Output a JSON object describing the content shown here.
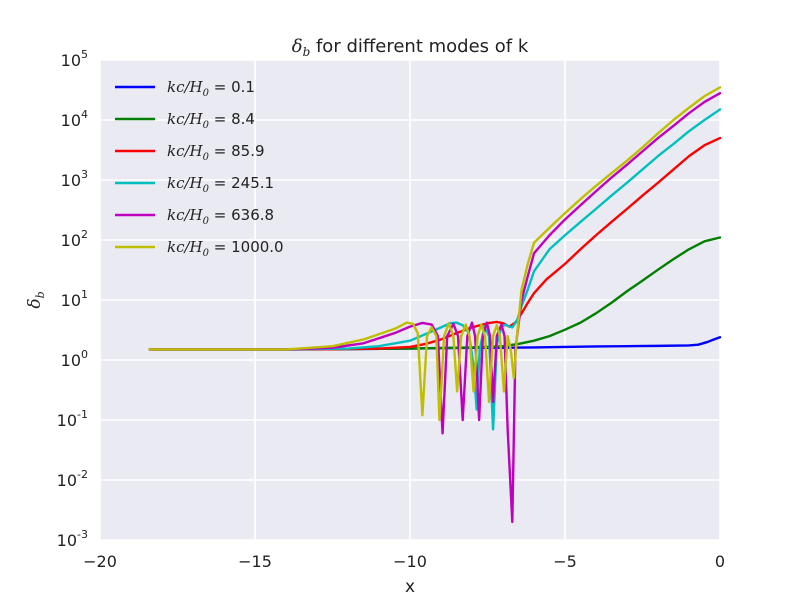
{
  "chart_data": {
    "type": "line",
    "title": "δ_b for different modes of k",
    "title_parts": {
      "symbol": "δ",
      "subscript": "b",
      "rest": " for different modes of k"
    },
    "xlabel": "x",
    "ylabel": "δ_b",
    "ylabel_parts": {
      "symbol": "δ",
      "subscript": "b"
    },
    "xlim": [
      -20,
      0
    ],
    "ylim": [
      0.001,
      100000
    ],
    "y_scale": "log",
    "grid": true,
    "legend_position": "top-left",
    "x_ticks": [
      "−20",
      "−15",
      "−10",
      "−5",
      "0"
    ],
    "y_ticks": [
      {
        "base": "10",
        "exp": "-3"
      },
      {
        "base": "10",
        "exp": "-2"
      },
      {
        "base": "10",
        "exp": "-1"
      },
      {
        "base": "10",
        "exp": "0"
      },
      {
        "base": "10",
        "exp": "1"
      },
      {
        "base": "10",
        "exp": "2"
      },
      {
        "base": "10",
        "exp": "3"
      },
      {
        "base": "10",
        "exp": "4"
      },
      {
        "base": "10",
        "exp": "5"
      }
    ],
    "legend_prefix": "kc/H",
    "legend_prefix_sub": "0",
    "series": [
      {
        "name": "0.1",
        "color": "#0000ff",
        "points": [
          [
            -18.4,
            1.5
          ],
          [
            -16,
            1.5
          ],
          [
            -14,
            1.5
          ],
          [
            -12,
            1.52
          ],
          [
            -10,
            1.55
          ],
          [
            -8,
            1.6
          ],
          [
            -7,
            1.6
          ],
          [
            -6,
            1.62
          ],
          [
            -5,
            1.65
          ],
          [
            -4,
            1.68
          ],
          [
            -3,
            1.7
          ],
          [
            -2,
            1.72
          ],
          [
            -1,
            1.75
          ],
          [
            -0.7,
            1.8
          ],
          [
            -0.4,
            2
          ],
          [
            -0.2,
            2.2
          ],
          [
            0,
            2.4
          ]
        ]
      },
      {
        "name": "8.4",
        "color": "#008000",
        "points": [
          [
            -18.4,
            1.5
          ],
          [
            -16,
            1.5
          ],
          [
            -14,
            1.5
          ],
          [
            -12,
            1.52
          ],
          [
            -10,
            1.55
          ],
          [
            -8,
            1.62
          ],
          [
            -7,
            1.7
          ],
          [
            -6.5,
            1.85
          ],
          [
            -6,
            2.1
          ],
          [
            -5.5,
            2.5
          ],
          [
            -5,
            3.2
          ],
          [
            -4.5,
            4.2
          ],
          [
            -4,
            6
          ],
          [
            -3.5,
            9
          ],
          [
            -3,
            14
          ],
          [
            -2.5,
            21
          ],
          [
            -2,
            32
          ],
          [
            -1.5,
            48
          ],
          [
            -1,
            70
          ],
          [
            -0.5,
            95
          ],
          [
            0,
            110
          ]
        ]
      },
      {
        "name": "85.9",
        "color": "#ff0000",
        "points": [
          [
            -18.4,
            1.5
          ],
          [
            -15,
            1.5
          ],
          [
            -13,
            1.5
          ],
          [
            -11,
            1.55
          ],
          [
            -10,
            1.65
          ],
          [
            -9.5,
            1.85
          ],
          [
            -9,
            2.2
          ],
          [
            -8.5,
            2.8
          ],
          [
            -8,
            3.5
          ],
          [
            -7.5,
            4.1
          ],
          [
            -7.2,
            4.3
          ],
          [
            -7,
            4.1
          ],
          [
            -6.8,
            3.6
          ],
          [
            -6.6,
            4.2
          ],
          [
            -6.4,
            6
          ],
          [
            -6.2,
            9
          ],
          [
            -6,
            13
          ],
          [
            -5.6,
            22
          ],
          [
            -5,
            40
          ],
          [
            -4.5,
            70
          ],
          [
            -4,
            120
          ],
          [
            -3.5,
            200
          ],
          [
            -3,
            330
          ],
          [
            -2.5,
            550
          ],
          [
            -2,
            900
          ],
          [
            -1.5,
            1500
          ],
          [
            -1,
            2500
          ],
          [
            -0.5,
            3800
          ],
          [
            0,
            5000
          ]
        ]
      },
      {
        "name": "245.1",
        "color": "#00bfbf",
        "points": [
          [
            -18.4,
            1.5
          ],
          [
            -14,
            1.5
          ],
          [
            -12,
            1.55
          ],
          [
            -11,
            1.7
          ],
          [
            -10,
            2.1
          ],
          [
            -9.5,
            2.7
          ],
          [
            -9,
            3.5
          ],
          [
            -8.7,
            4.1
          ],
          [
            -8.5,
            4.2
          ],
          [
            -8.3,
            3.8
          ],
          [
            -8.1,
            2.8
          ],
          [
            -7.95,
            0.8
          ],
          [
            -7.85,
            0.15
          ],
          [
            -7.75,
            1.5
          ],
          [
            -7.6,
            3.6
          ],
          [
            -7.45,
            2.5
          ],
          [
            -7.32,
            0.07
          ],
          [
            -7.2,
            1.8
          ],
          [
            -7.05,
            3.6
          ],
          [
            -6.9,
            3.9
          ],
          [
            -6.8,
            3.6
          ],
          [
            -6.7,
            3.5
          ],
          [
            -6.55,
            4.5
          ],
          [
            -6.4,
            8
          ],
          [
            -6.2,
            15
          ],
          [
            -6,
            30
          ],
          [
            -5.5,
            70
          ],
          [
            -5,
            120
          ],
          [
            -4.5,
            200
          ],
          [
            -4,
            330
          ],
          [
            -3.5,
            550
          ],
          [
            -3,
            900
          ],
          [
            -2.5,
            1500
          ],
          [
            -2,
            2500
          ],
          [
            -1.5,
            4000
          ],
          [
            -1,
            6500
          ],
          [
            -0.5,
            10000
          ],
          [
            0,
            15000
          ]
        ]
      },
      {
        "name": "636.8",
        "color": "#bf00bf",
        "points": [
          [
            -18.4,
            1.5
          ],
          [
            -14,
            1.5
          ],
          [
            -12.5,
            1.6
          ],
          [
            -11.5,
            1.9
          ],
          [
            -10.5,
            2.8
          ],
          [
            -10,
            3.6
          ],
          [
            -9.6,
            4.15
          ],
          [
            -9.3,
            3.9
          ],
          [
            -9.1,
            2.5
          ],
          [
            -8.95,
            0.06
          ],
          [
            -8.8,
            2.5
          ],
          [
            -8.6,
            4
          ],
          [
            -8.45,
            2.5
          ],
          [
            -8.3,
            0.1
          ],
          [
            -8.15,
            2.5
          ],
          [
            -8,
            4.2
          ],
          [
            -7.9,
            2.5
          ],
          [
            -7.77,
            0.1
          ],
          [
            -7.65,
            2.5
          ],
          [
            -7.52,
            4.2
          ],
          [
            -7.42,
            2.5
          ],
          [
            -7.32,
            0.2
          ],
          [
            -7.2,
            2.5
          ],
          [
            -7.05,
            3.9
          ],
          [
            -6.95,
            2.5
          ],
          [
            -6.85,
            0.07
          ],
          [
            -6.7,
            0.002
          ],
          [
            -6.6,
            1.5
          ],
          [
            -6.4,
            10
          ],
          [
            -6.2,
            25
          ],
          [
            -6,
            60
          ],
          [
            -5.5,
            120
          ],
          [
            -5,
            220
          ],
          [
            -4.5,
            380
          ],
          [
            -4,
            650
          ],
          [
            -3.5,
            1100
          ],
          [
            -3,
            1800
          ],
          [
            -2.5,
            3000
          ],
          [
            -2,
            5000
          ],
          [
            -1.5,
            8000
          ],
          [
            -1,
            13000
          ],
          [
            -0.5,
            20000
          ],
          [
            0,
            28000
          ]
        ]
      },
      {
        "name": "1000.0",
        "color": "#bfbf00",
        "points": [
          [
            -18.4,
            1.5
          ],
          [
            -14,
            1.5
          ],
          [
            -12.5,
            1.7
          ],
          [
            -11.5,
            2.2
          ],
          [
            -10.5,
            3.3
          ],
          [
            -10.1,
            4.2
          ],
          [
            -9.9,
            4
          ],
          [
            -9.75,
            2.8
          ],
          [
            -9.6,
            0.12
          ],
          [
            -9.45,
            2.5
          ],
          [
            -9.3,
            3.5
          ],
          [
            -9.15,
            2.5
          ],
          [
            -9.05,
            0.1
          ],
          [
            -8.9,
            2.5
          ],
          [
            -8.75,
            4.1
          ],
          [
            -8.6,
            2.5
          ],
          [
            -8.48,
            0.3
          ],
          [
            -8.35,
            2.5
          ],
          [
            -8.2,
            3.9
          ],
          [
            -8.08,
            2.5
          ],
          [
            -7.95,
            0.3
          ],
          [
            -7.82,
            2.5
          ],
          [
            -7.7,
            3.9
          ],
          [
            -7.58,
            2.5
          ],
          [
            -7.45,
            0.2
          ],
          [
            -7.32,
            2.5
          ],
          [
            -7.2,
            3.8
          ],
          [
            -7.1,
            2.5
          ],
          [
            -6.97,
            0.3
          ],
          [
            -6.85,
            2.5
          ],
          [
            -6.75,
            1.5
          ],
          [
            -6.65,
            0.5
          ],
          [
            -6.55,
            2.5
          ],
          [
            -6.4,
            15
          ],
          [
            -6.2,
            40
          ],
          [
            -6,
            90
          ],
          [
            -5.5,
            160
          ],
          [
            -5,
            280
          ],
          [
            -4.5,
            480
          ],
          [
            -4,
            800
          ],
          [
            -3.5,
            1300
          ],
          [
            -3,
            2100
          ],
          [
            -2.5,
            3500
          ],
          [
            -2,
            6000
          ],
          [
            -1.5,
            10000
          ],
          [
            -1,
            16000
          ],
          [
            -0.5,
            25000
          ],
          [
            0,
            35000
          ]
        ]
      }
    ]
  }
}
